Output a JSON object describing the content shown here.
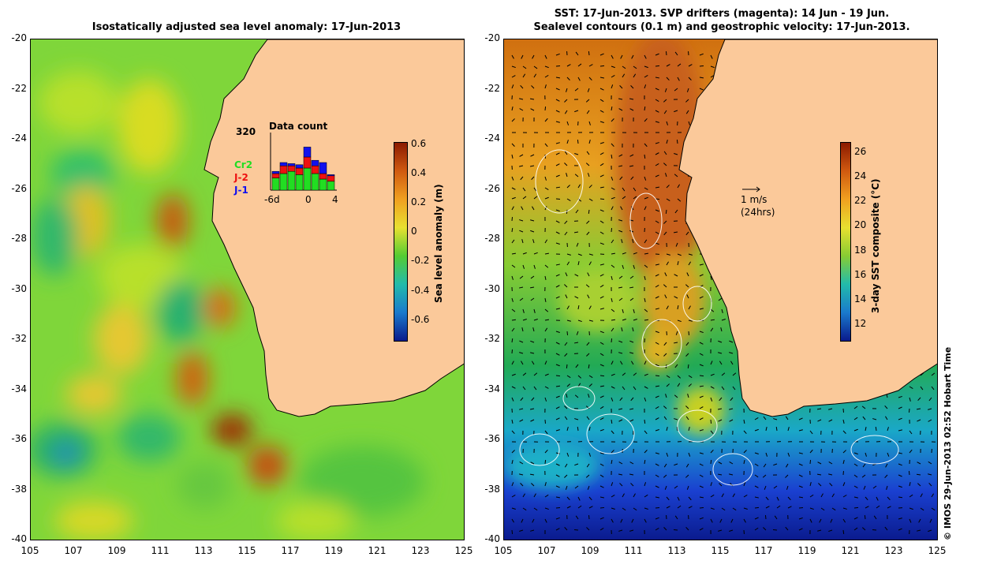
{
  "left_panel": {
    "title": "Isostatically adjusted sea level anomaly: 17-Jun-2013",
    "y_ticks": [
      "-20",
      "-22",
      "-24",
      "-26",
      "-28",
      "-30",
      "-32",
      "-34",
      "-36",
      "-38",
      "-40"
    ],
    "x_ticks": [
      "105",
      "107",
      "109",
      "111",
      "113",
      "115",
      "117",
      "119",
      "121",
      "123",
      "125"
    ],
    "colorbar": {
      "title": "Sea level anomaly (m)",
      "ticks": [
        "0.6",
        "0.4",
        "0.2",
        "0",
        "-0.2",
        "-0.4",
        "-0.6"
      ]
    },
    "inset": {
      "count": "320",
      "title": "Data count",
      "legend": [
        {
          "name": "Cr2",
          "color": "#22dd22"
        },
        {
          "name": "J-2",
          "color": "#ee1111"
        },
        {
          "name": "J-1",
          "color": "#1111ee"
        }
      ],
      "x_ticks": [
        "-6d",
        "0",
        "4"
      ]
    }
  },
  "right_panel": {
    "title_line1": "SST: 17-Jun-2013. SVP drifters (magenta): 14 Jun - 19 Jun.",
    "title_line2": "Sealevel contours (0.1 m) and geostrophic velocity: 17-Jun-2013.",
    "y_ticks": [
      "-20",
      "-22",
      "-24",
      "-26",
      "-28",
      "-30",
      "-32",
      "-34",
      "-36",
      "-38",
      "-40"
    ],
    "x_ticks": [
      "105",
      "107",
      "109",
      "111",
      "113",
      "115",
      "117",
      "119",
      "121",
      "123",
      "125"
    ],
    "colorbar": {
      "title": "3-day SST composite (°C)",
      "ticks": [
        "26",
        "24",
        "22",
        "20",
        "18",
        "16",
        "14",
        "12"
      ]
    },
    "velocity_key": {
      "line1": "1 m/s",
      "line2": "(24hrs)"
    }
  },
  "credit": "© IMOS 29-Jun-2013 02:52 Hobart Time",
  "colors": {
    "land": "#fbc99a",
    "ssh_low": "#0a1a8c",
    "ssh_mid": "#33cc33",
    "ssh_high": "#8b1a00",
    "sst_cold": "#0a1a8c",
    "sst_warm": "#a0200a"
  }
}
